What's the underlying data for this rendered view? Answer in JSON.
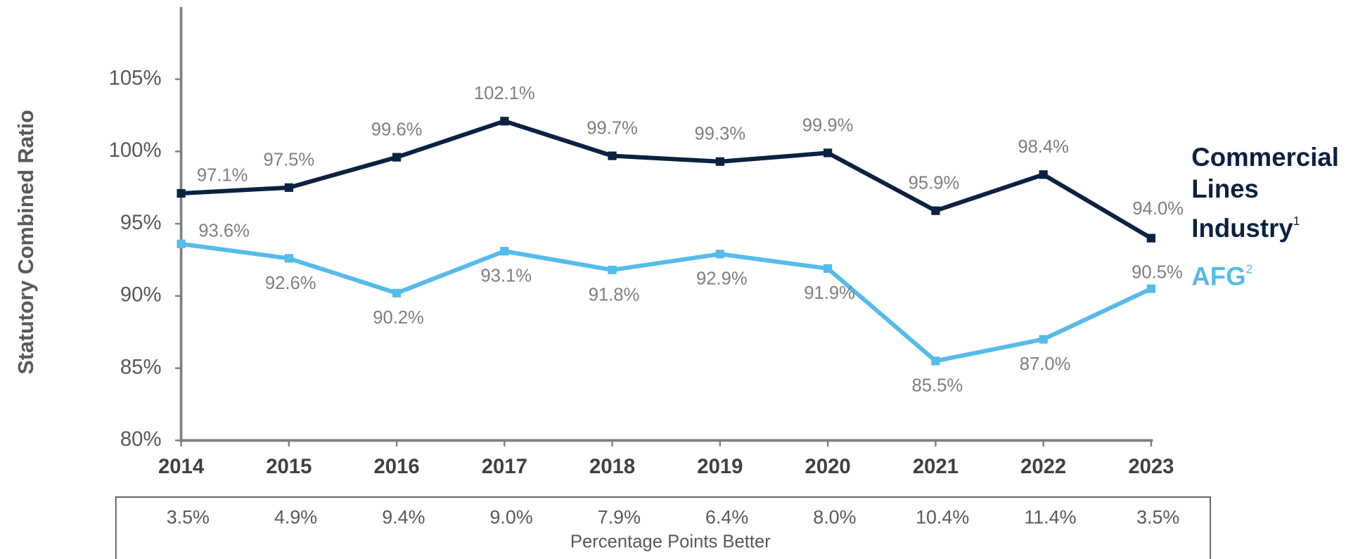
{
  "chart_data": {
    "type": "line",
    "y_label": "Statutory Combined Ratio",
    "categories": [
      "2014",
      "2015",
      "2016",
      "2017",
      "2018",
      "2019",
      "2020",
      "2021",
      "2022",
      "2023"
    ],
    "series": [
      {
        "name": "Commercial Lines Industry",
        "footnote": "1",
        "color": "#0b2142",
        "values": [
          97.1,
          97.5,
          99.6,
          102.1,
          99.7,
          99.3,
          99.9,
          95.9,
          98.4,
          94.0
        ],
        "value_labels": [
          "97.1%",
          "97.5%",
          "99.6%",
          "102.1%",
          "99.7%",
          "99.3%",
          "99.9%",
          "95.9%",
          "98.4%",
          "94.0%"
        ]
      },
      {
        "name": "AFG",
        "footnote": "2",
        "color": "#55bbea",
        "values": [
          93.6,
          92.6,
          90.2,
          93.1,
          91.8,
          92.9,
          91.9,
          85.5,
          87.0,
          90.5
        ],
        "value_labels": [
          "93.6%",
          "92.6%",
          "90.2%",
          "93.1%",
          "91.8%",
          "92.9%",
          "91.9%",
          "85.5%",
          "87.0%",
          "90.5%"
        ]
      }
    ],
    "ylim": [
      80,
      110
    ],
    "yticks": [
      {
        "value": 80,
        "label": "80%"
      },
      {
        "value": 85,
        "label": "85%"
      },
      {
        "value": 90,
        "label": "90%"
      },
      {
        "value": 95,
        "label": "95%"
      },
      {
        "value": 100,
        "label": "100%"
      },
      {
        "value": 105,
        "label": "105%"
      }
    ],
    "difference": {
      "labels": [
        "3.5%",
        "4.9%",
        "9.4%",
        "9.0%",
        "7.9%",
        "6.4%",
        "8.0%",
        "10.4%",
        "11.4%",
        "3.5%"
      ],
      "title": "Percentage Points Better"
    }
  }
}
